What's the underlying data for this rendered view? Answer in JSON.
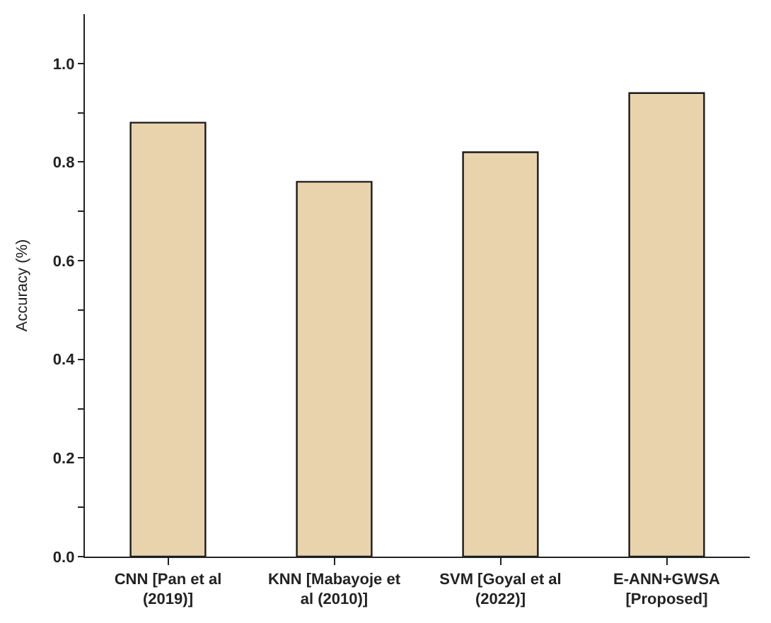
{
  "chart_data": {
    "type": "bar",
    "ylabel": "Accuracy (%)",
    "categories": [
      "CNN [Pan et al (2019)]",
      "KNN [Mabayoje et al (2010)]",
      "SVM [Goyal et al (2022)]",
      "E-ANN+GWSA [Proposed]"
    ],
    "values": [
      0.88,
      0.76,
      0.82,
      0.94
    ],
    "color": "#e9d3ad",
    "ylim": [
      0,
      1.1
    ],
    "yticks": [
      {
        "value": 0,
        "label": "0.0"
      },
      {
        "value": 0.1,
        "label": null
      },
      {
        "value": 0.2,
        "label": "0.2"
      },
      {
        "value": 0.3,
        "label": null
      },
      {
        "value": 0.4,
        "label": "0.4"
      },
      {
        "value": 0.5,
        "label": null
      },
      {
        "value": 0.6,
        "label": "0.6"
      },
      {
        "value": 0.7,
        "label": null
      },
      {
        "value": 0.8,
        "label": "0.8"
      },
      {
        "value": 0.9,
        "label": null
      },
      {
        "value": 1,
        "label": "1.0"
      }
    ]
  }
}
